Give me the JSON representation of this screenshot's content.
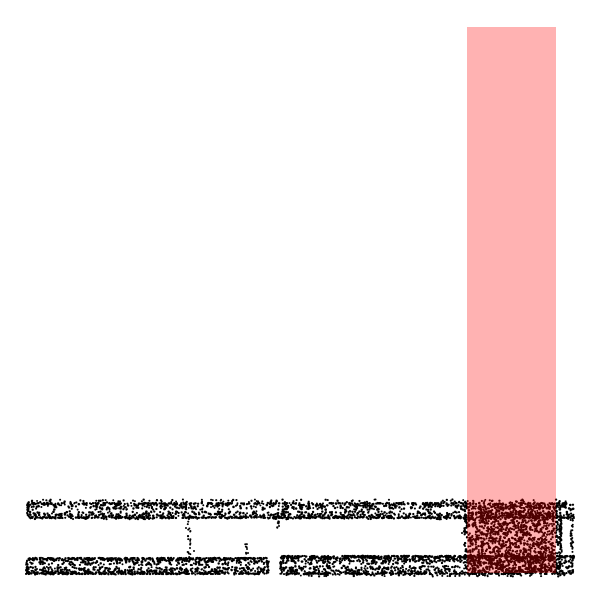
{
  "scene": {
    "background": "#ffffff",
    "point_color": "#000000",
    "highlight_color": "#ff0000",
    "highlight_opacity": 0.3,
    "point_cloud_description_present": false
  }
}
